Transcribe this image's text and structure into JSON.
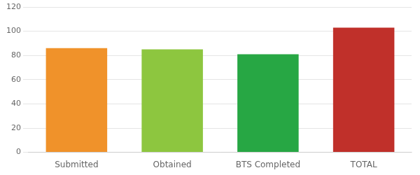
{
  "chart_data": {
    "type": "bar",
    "categories": [
      "Submitted",
      "Obtained",
      "BTS Completed",
      "TOTAL"
    ],
    "values": [
      86,
      85,
      81,
      103
    ],
    "colors": [
      "#F0922A",
      "#8DC63F",
      "#27A744",
      "#C0302A"
    ],
    "ylim": [
      0,
      120
    ],
    "yticks": [
      0,
      20,
      40,
      60,
      80,
      100,
      120
    ],
    "grid": true
  }
}
